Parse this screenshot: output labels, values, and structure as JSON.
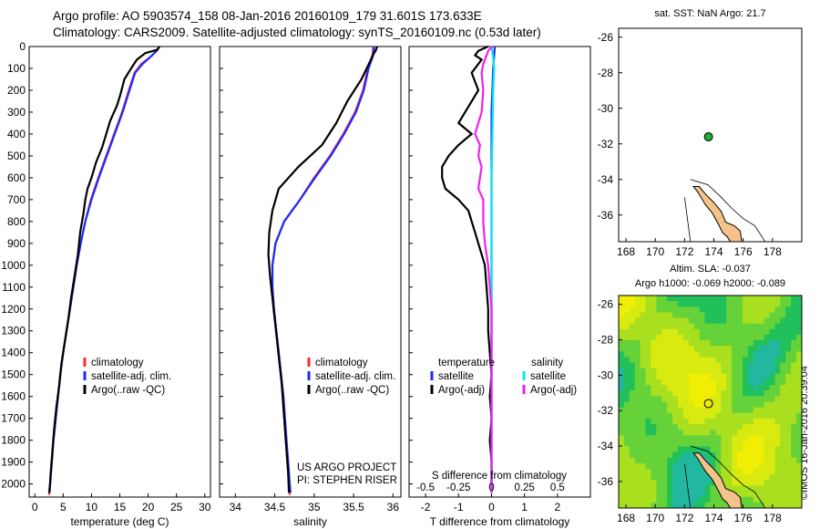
{
  "header": {
    "line1": "Argo profile: AO 5903574_158 08-Jan-2016 20160109_179 31.601S 173.633E",
    "line2": "Climatology: CARS2009. Satellite-adjusted climatology: synTS_20160109.nc (0.53d later)"
  },
  "stamp": "©IMOS 16-Jan-2016 20:39:04",
  "colors": {
    "climatology": "#ff2a2a",
    "satellite": "#1a2cff",
    "argo": "#000000",
    "sat_sal": "#00e8f0",
    "argo_sal": "#ee22ee",
    "land": "#f5c28a",
    "float": "#22aa33"
  },
  "chart_data": [
    {
      "id": "temperature",
      "type": "line",
      "xlabel": "temperature (deg C)",
      "xlim": [
        -1,
        31
      ],
      "xticks": [
        0,
        5,
        10,
        15,
        20,
        25,
        30
      ],
      "ylim": [
        2060,
        0
      ],
      "yticks": [
        0,
        100,
        200,
        300,
        400,
        500,
        600,
        700,
        800,
        900,
        1000,
        1100,
        1200,
        1300,
        1400,
        1500,
        1600,
        1700,
        1800,
        1900,
        2000
      ],
      "legend": [
        "climatology",
        "satellite-adj. clim.",
        "Argo(..raw -QC)"
      ],
      "series": [
        {
          "name": "climatology",
          "color": "#ff2a2a",
          "points": [
            [
              22.0,
              0
            ],
            [
              21.5,
              20
            ],
            [
              20.3,
              50
            ],
            [
              18.8,
              80
            ],
            [
              17.6,
              120
            ],
            [
              16.6,
              200
            ],
            [
              15.4,
              300
            ],
            [
              14.0,
              400
            ],
            [
              12.6,
              500
            ],
            [
              11.2,
              600
            ],
            [
              9.9,
              700
            ],
            [
              8.9,
              800
            ],
            [
              8.1,
              900
            ],
            [
              7.4,
              1000
            ],
            [
              6.8,
              1100
            ],
            [
              6.2,
              1200
            ],
            [
              5.6,
              1300
            ],
            [
              5.0,
              1400
            ],
            [
              4.5,
              1500
            ],
            [
              4.1,
              1600
            ],
            [
              3.7,
              1700
            ],
            [
              3.3,
              1800
            ],
            [
              3.0,
              1900
            ],
            [
              2.7,
              2000
            ],
            [
              2.5,
              2050
            ]
          ]
        },
        {
          "name": "satellite-adj. clim.",
          "color": "#1a2cff",
          "points": [
            [
              22.0,
              0
            ],
            [
              21.5,
              20
            ],
            [
              20.3,
              50
            ],
            [
              19.0,
              80
            ],
            [
              17.7,
              120
            ],
            [
              16.7,
              200
            ],
            [
              15.5,
              300
            ],
            [
              14.1,
              400
            ],
            [
              12.7,
              500
            ],
            [
              11.3,
              600
            ],
            [
              10.0,
              700
            ],
            [
              8.9,
              800
            ],
            [
              8.1,
              900
            ],
            [
              7.4,
              1000
            ],
            [
              6.8,
              1100
            ],
            [
              6.2,
              1200
            ],
            [
              5.6,
              1300
            ],
            [
              5.0,
              1400
            ],
            [
              4.5,
              1500
            ],
            [
              4.1,
              1600
            ],
            [
              3.7,
              1700
            ],
            [
              3.3,
              1800
            ],
            [
              3.0,
              1900
            ],
            [
              2.7,
              2000
            ],
            [
              2.5,
              2040
            ]
          ]
        },
        {
          "name": "Argo(..raw -QC)",
          "color": "#000000",
          "points": [
            [
              22.0,
              0
            ],
            [
              21.6,
              15
            ],
            [
              19.5,
              30
            ],
            [
              18.0,
              60
            ],
            [
              17.0,
              100
            ],
            [
              15.8,
              150
            ],
            [
              15.1,
              220
            ],
            [
              14.5,
              270
            ],
            [
              13.3,
              340
            ],
            [
              12.6,
              400
            ],
            [
              11.9,
              460
            ],
            [
              10.8,
              530
            ],
            [
              10.0,
              600
            ],
            [
              9.3,
              650
            ],
            [
              8.9,
              700
            ],
            [
              8.6,
              760
            ],
            [
              8.0,
              850
            ],
            [
              7.6,
              950
            ],
            [
              7.0,
              1050
            ],
            [
              6.4,
              1150
            ],
            [
              5.9,
              1250
            ],
            [
              5.3,
              1350
            ],
            [
              4.7,
              1450
            ],
            [
              4.3,
              1550
            ],
            [
              3.8,
              1650
            ],
            [
              3.4,
              1750
            ],
            [
              3.1,
              1850
            ],
            [
              2.8,
              1950
            ],
            [
              2.6,
              2040
            ]
          ]
        }
      ]
    },
    {
      "id": "salinity",
      "type": "line",
      "xlabel": "salinity",
      "xlim": [
        33.8,
        36.1
      ],
      "xticks": [
        34,
        34.5,
        35,
        35.5,
        36
      ],
      "ylim": [
        2060,
        0
      ],
      "legend": [
        "climatology",
        "satellite-adj. clim.",
        "Argo(..raw -QC)"
      ],
      "annotations": [
        "US ARGO PROJECT",
        "PI: STEPHEN RISER"
      ],
      "series": [
        {
          "name": "climatology",
          "color": "#ff2a2a",
          "points": [
            [
              35.75,
              0
            ],
            [
              35.74,
              40
            ],
            [
              35.68,
              100
            ],
            [
              35.62,
              200
            ],
            [
              35.52,
              300
            ],
            [
              35.37,
              400
            ],
            [
              35.2,
              500
            ],
            [
              35.0,
              600
            ],
            [
              34.82,
              700
            ],
            [
              34.62,
              800
            ],
            [
              34.51,
              900
            ],
            [
              34.47,
              1000
            ],
            [
              34.47,
              1100
            ],
            [
              34.49,
              1200
            ],
            [
              34.52,
              1300
            ],
            [
              34.55,
              1400
            ],
            [
              34.58,
              1500
            ],
            [
              34.6,
              1600
            ],
            [
              34.62,
              1700
            ],
            [
              34.64,
              1800
            ],
            [
              34.66,
              1900
            ],
            [
              34.68,
              2000
            ],
            [
              34.69,
              2050
            ]
          ]
        },
        {
          "name": "satellite-adj. clim.",
          "color": "#1a2cff",
          "points": [
            [
              35.76,
              0
            ],
            [
              35.75,
              40
            ],
            [
              35.69,
              100
            ],
            [
              35.63,
              200
            ],
            [
              35.53,
              300
            ],
            [
              35.38,
              400
            ],
            [
              35.21,
              500
            ],
            [
              35.01,
              600
            ],
            [
              34.82,
              700
            ],
            [
              34.62,
              800
            ],
            [
              34.51,
              900
            ],
            [
              34.47,
              1000
            ],
            [
              34.47,
              1100
            ],
            [
              34.49,
              1200
            ],
            [
              34.52,
              1300
            ],
            [
              34.55,
              1400
            ],
            [
              34.58,
              1500
            ],
            [
              34.61,
              1600
            ],
            [
              34.63,
              1700
            ],
            [
              34.65,
              1800
            ],
            [
              34.67,
              1900
            ],
            [
              34.69,
              2000
            ],
            [
              34.7,
              2040
            ]
          ]
        },
        {
          "name": "Argo(..raw -QC)",
          "color": "#000000",
          "points": [
            [
              35.8,
              0
            ],
            [
              35.78,
              20
            ],
            [
              35.74,
              40
            ],
            [
              35.72,
              60
            ],
            [
              35.6,
              150
            ],
            [
              35.42,
              250
            ],
            [
              35.28,
              350
            ],
            [
              35.1,
              450
            ],
            [
              34.8,
              550
            ],
            [
              34.55,
              650
            ],
            [
              34.47,
              750
            ],
            [
              34.43,
              850
            ],
            [
              34.42,
              950
            ],
            [
              34.44,
              1050
            ],
            [
              34.47,
              1150
            ],
            [
              34.5,
              1250
            ],
            [
              34.53,
              1350
            ],
            [
              34.56,
              1450
            ],
            [
              34.59,
              1550
            ],
            [
              34.61,
              1650
            ],
            [
              34.63,
              1750
            ],
            [
              34.65,
              1850
            ],
            [
              34.67,
              1950
            ],
            [
              34.68,
              2040
            ]
          ]
        }
      ]
    },
    {
      "id": "difference",
      "type": "line",
      "xlabel": "T difference from climatology",
      "x2label": "S difference from climatology",
      "xlim": [
        -2.5,
        3
      ],
      "xticks": [
        -2,
        -1,
        0,
        1,
        2
      ],
      "x2ticks": [
        "-0.5",
        "-0.25",
        "0",
        "0.25",
        "0.5"
      ],
      "x2values": [
        -0.5,
        -0.25,
        0,
        0.25,
        0.5
      ],
      "ylim": [
        2060,
        0
      ],
      "legend": {
        "left_title": "temperature",
        "right_title": "salinity",
        "left": [
          "satellite",
          "Argo(-adj)"
        ],
        "right": [
          "satellite",
          "Argo(-adj)"
        ]
      },
      "series": [
        {
          "name": "temperature satellite",
          "color": "#1a2cff",
          "points": [
            [
              0.1,
              0
            ],
            [
              0.05,
              100
            ],
            [
              0.0,
              300
            ],
            [
              0.0,
              600
            ],
            [
              0.0,
              1000
            ],
            [
              0.0,
              1500
            ],
            [
              0.0,
              2040
            ]
          ]
        },
        {
          "name": "temperature Argo(-adj)",
          "color": "#000000",
          "points": [
            [
              -0.1,
              0
            ],
            [
              -0.4,
              20
            ],
            [
              -0.5,
              40
            ],
            [
              -0.3,
              60
            ],
            [
              -0.6,
              120
            ],
            [
              -0.4,
              200
            ],
            [
              -0.8,
              300
            ],
            [
              -1.0,
              350
            ],
            [
              -0.6,
              400
            ],
            [
              -1.0,
              450
            ],
            [
              -1.3,
              500
            ],
            [
              -1.5,
              550
            ],
            [
              -1.5,
              600
            ],
            [
              -1.4,
              650
            ],
            [
              -1.0,
              700
            ],
            [
              -0.7,
              750
            ],
            [
              -0.6,
              800
            ],
            [
              -0.5,
              850
            ],
            [
              -0.4,
              900
            ],
            [
              -0.3,
              950
            ],
            [
              -0.2,
              1000
            ],
            [
              -0.15,
              1100
            ],
            [
              -0.1,
              1200
            ],
            [
              -0.1,
              1300
            ],
            [
              -0.05,
              1400
            ],
            [
              0.0,
              1500
            ],
            [
              -0.05,
              1600
            ],
            [
              0.0,
              1700
            ],
            [
              -0.05,
              1800
            ],
            [
              0.0,
              1900
            ],
            [
              0.0,
              2040
            ]
          ]
        },
        {
          "name": "salinity satellite",
          "color": "#00e8f0",
          "points": [
            [
              0.0,
              0
            ],
            [
              0.05,
              50
            ],
            [
              0.08,
              100
            ],
            [
              0.05,
              200
            ],
            [
              0.03,
              400
            ],
            [
              0.0,
              600
            ],
            [
              0.0,
              800
            ],
            [
              0.0,
              1000
            ],
            [
              0.0,
              1400
            ],
            [
              0.0,
              2040
            ]
          ]
        },
        {
          "name": "salinity Argo(-adj)",
          "color": "#ee22ee",
          "points": [
            [
              0.02,
              0
            ],
            [
              -0.1,
              20
            ],
            [
              -0.15,
              40
            ],
            [
              -0.25,
              80
            ],
            [
              -0.3,
              120
            ],
            [
              -0.25,
              200
            ],
            [
              -0.3,
              300
            ],
            [
              -0.5,
              400
            ],
            [
              -0.35,
              450
            ],
            [
              -0.4,
              500
            ],
            [
              -0.3,
              550
            ],
            [
              -0.35,
              600
            ],
            [
              -0.4,
              650
            ],
            [
              -0.25,
              700
            ],
            [
              -0.25,
              800
            ],
            [
              -0.2,
              900
            ],
            [
              -0.1,
              1000
            ],
            [
              -0.05,
              1100
            ],
            [
              0.0,
              1200
            ],
            [
              0.0,
              1400
            ],
            [
              0.0,
              1600
            ],
            [
              0.0,
              2040
            ]
          ]
        }
      ]
    },
    {
      "id": "sst_map",
      "type": "map",
      "title": "sat. SST: NaN Argo: 21.7",
      "xlim": [
        167.5,
        180
      ],
      "ylim": [
        -37.5,
        -25.5
      ],
      "xticks": [
        168,
        170,
        172,
        174,
        176,
        178
      ],
      "yticks": [
        -26,
        -28,
        -30,
        -32,
        -34,
        -36
      ],
      "float": {
        "lon": 173.633,
        "lat": -31.601
      }
    },
    {
      "id": "sla_map",
      "type": "heatmap",
      "title": "Altim. SLA: -0.037",
      "subtitle": "Argo h1000: -0.069 h2000: -0.089",
      "xlim": [
        167.5,
        180
      ],
      "ylim": [
        -37.5,
        -25.5
      ],
      "xticks": [
        168,
        170,
        172,
        174,
        176,
        178
      ],
      "yticks": [
        -26,
        -28,
        -30,
        -32,
        -34,
        -36
      ],
      "float": {
        "lon": 173.633,
        "lat": -31.601
      }
    }
  ]
}
